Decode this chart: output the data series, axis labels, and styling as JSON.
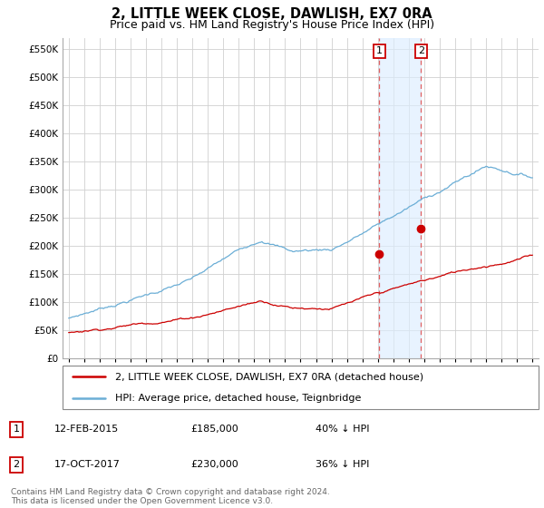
{
  "title": "2, LITTLE WEEK CLOSE, DAWLISH, EX7 0RA",
  "subtitle": "Price paid vs. HM Land Registry's House Price Index (HPI)",
  "ytick_vals": [
    0,
    50000,
    100000,
    150000,
    200000,
    250000,
    300000,
    350000,
    400000,
    450000,
    500000,
    550000
  ],
  "ylim": [
    0,
    570000
  ],
  "hpi_color": "#6baed6",
  "price_color": "#cc0000",
  "sale1_date": 2015.1,
  "sale1_price": 185000,
  "sale2_date": 2017.8,
  "sale2_price": 230000,
  "vline_color": "#e06060",
  "shade_color": "#ddeeff",
  "legend_label1": "2, LITTLE WEEK CLOSE, DAWLISH, EX7 0RA (detached house)",
  "legend_label2": "HPI: Average price, detached house, Teignbridge",
  "annotation1_date": "12-FEB-2015",
  "annotation1_price": "£185,000",
  "annotation1_hpi": "40% ↓ HPI",
  "annotation2_date": "17-OCT-2017",
  "annotation2_price": "£230,000",
  "annotation2_hpi": "36% ↓ HPI",
  "footer": "Contains HM Land Registry data © Crown copyright and database right 2024.\nThis data is licensed under the Open Government Licence v3.0.",
  "title_fontsize": 10.5,
  "subtitle_fontsize": 9,
  "tick_fontsize": 7.5,
  "legend_fontsize": 8,
  "annot_fontsize": 8,
  "footer_fontsize": 6.5,
  "xstart": 1995,
  "xend": 2025
}
